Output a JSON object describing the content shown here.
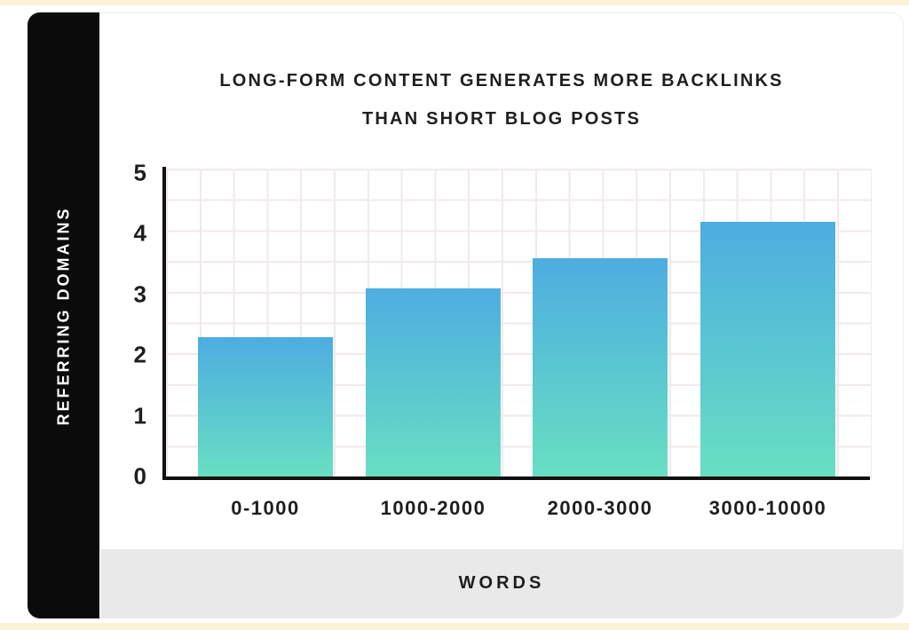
{
  "page": {
    "top_strip_color": "#faf3d8",
    "bottom_strip_color": "#faf3d8",
    "card_background": "#ffffff",
    "sidebar_background": "#0b0b0b",
    "band_background": "#e9e9e9"
  },
  "chart_data": {
    "type": "bar",
    "title_line1": "LONG-FORM CONTENT GENERATES MORE BACKLINKS",
    "title_line2": "THAN SHORT BLOG POSTS",
    "ylabel": "REFERRING DOMAINS",
    "xlabel": "WORDS",
    "categories": [
      "0-1000",
      "1000-2000",
      "2000-3000",
      "3000-10000"
    ],
    "values": [
      2.3,
      3.1,
      3.6,
      4.2
    ],
    "y_ticks": [
      5,
      4,
      3,
      2,
      1,
      0
    ],
    "ylim": [
      0,
      5
    ],
    "grid": true,
    "legend": "none",
    "bar_gradient_top": "#4dade1",
    "bar_gradient_bottom": "#68dfc2",
    "grid_color": "#f2eaea",
    "axis_color": "#111111",
    "text_color": "#1e1e1e"
  }
}
